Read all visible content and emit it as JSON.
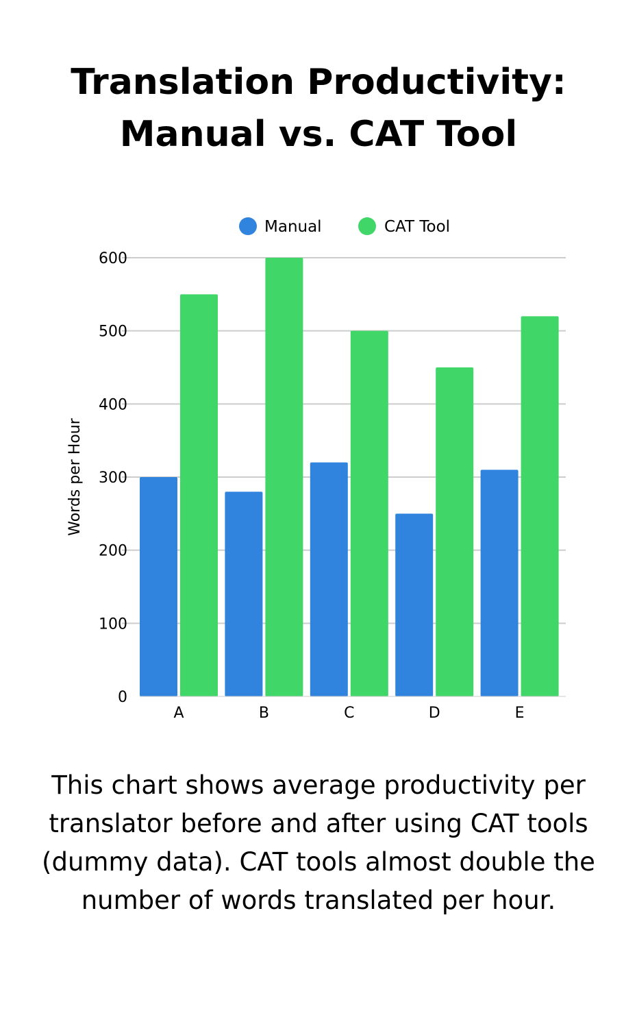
{
  "title_lines": [
    "Translation Productivity:",
    "Manual vs. CAT Tool"
  ],
  "caption": "This chart shows average productivity per translator before and after using CAT tools (dummy data). CAT tools almost double the number of words translated per hour.",
  "chart_data": {
    "type": "bar",
    "categories": [
      "A",
      "B",
      "C",
      "D",
      "E"
    ],
    "series": [
      {
        "name": "Manual",
        "values": [
          300,
          280,
          320,
          250,
          310
        ],
        "color": "#3184de"
      },
      {
        "name": "CAT Tool",
        "values": [
          550,
          600,
          500,
          450,
          520
        ],
        "color": "#40d668"
      }
    ],
    "ylabel": "Words per Hour",
    "xlabel": "",
    "ylim": [
      0,
      600
    ],
    "yticks": [
      0,
      100,
      200,
      300,
      400,
      500,
      600
    ],
    "grid": true,
    "legend_position": "top-center",
    "gridline_color": "#cccccc"
  }
}
